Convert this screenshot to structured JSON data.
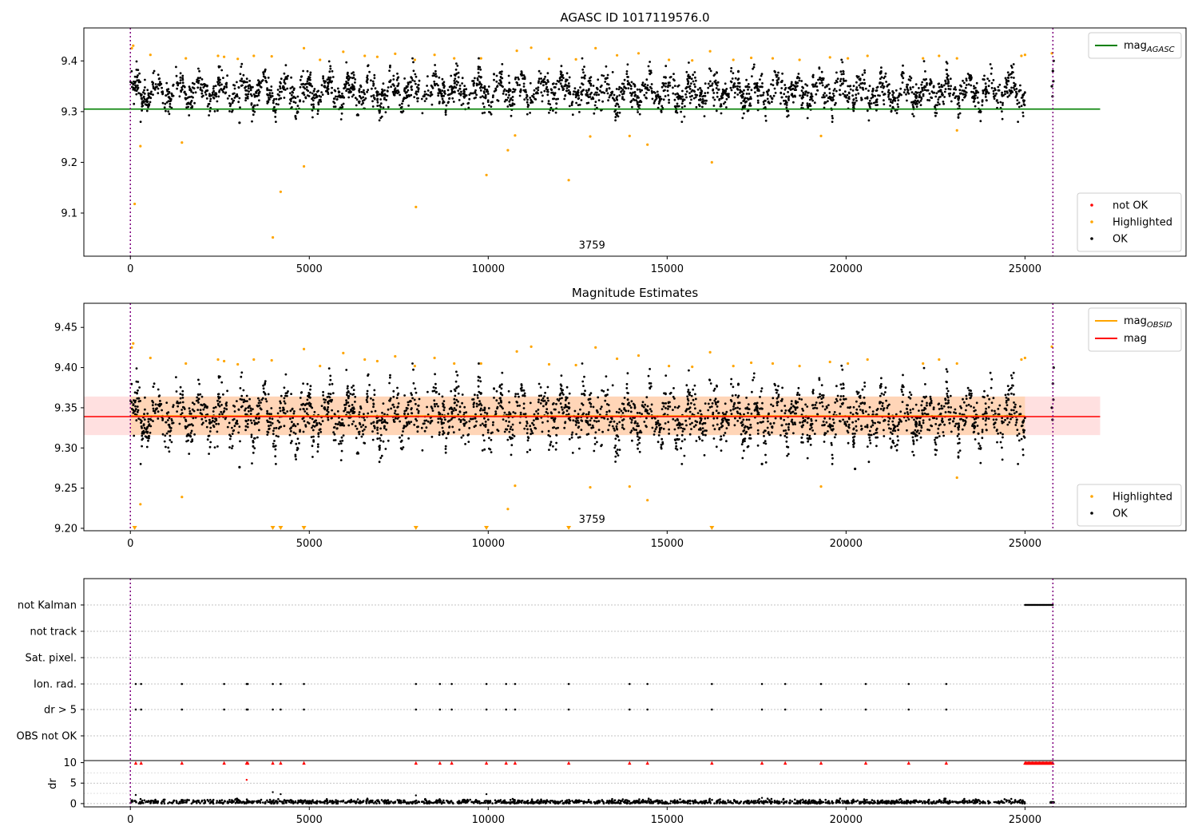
{
  "chart_data": [
    {
      "type": "scatter",
      "title": "AGASC ID 1017119576.0",
      "xlim": [
        -1300,
        29500
      ],
      "ylim": [
        9.015,
        9.465
      ],
      "x_ticks": [
        0,
        5000,
        10000,
        15000,
        20000,
        25000
      ],
      "x_tick_labels": [
        "0",
        "5000",
        "10000",
        "15000",
        "20000",
        "25000"
      ],
      "y_ticks": [
        9.1,
        9.2,
        9.3,
        9.4
      ],
      "y_tick_labels": [
        "9.1",
        "9.2",
        "9.3",
        "9.4"
      ],
      "vlines": [
        0,
        25780
      ],
      "vline_color": "#800080",
      "hline": {
        "name": "mag_AGASC",
        "label_main": "mag",
        "label_sub": "AGASC",
        "y": 9.305,
        "x_range": [
          -1300,
          27100
        ],
        "color": "#008000"
      },
      "annotation": {
        "text": "3759",
        "x": 12900,
        "y": 9.03
      },
      "legend_lines": {
        "position": "top-right",
        "entries": [
          {
            "label_main": "mag",
            "label_sub": "AGASC",
            "color": "#008000"
          }
        ]
      },
      "legend_points": {
        "position": "bottom-right",
        "entries": [
          {
            "label": "not OK",
            "color": "#ff0000"
          },
          {
            "label": "Highlighted",
            "color": "#ffa500"
          },
          {
            "label": "OK",
            "color": "#000000"
          }
        ]
      },
      "series": [
        {
          "name": "OK",
          "color": "#000000",
          "band": {
            "x_start": 0,
            "x_end": 25000,
            "center": 9.34,
            "amplitude": 0.03,
            "noise": 0.02,
            "n": 2800
          }
        },
        {
          "name": "Highlighted",
          "color": "#ffa500",
          "x": [
            120,
            280,
            1440,
            3980,
            4200,
            4850,
            7980,
            9950,
            10550,
            10750,
            12250,
            12850,
            13950,
            14450,
            16250,
            19300,
            23100,
            40,
            80,
            560,
            1550,
            2450,
            2620,
            3000,
            3450,
            3950,
            4850,
            5300,
            5950,
            6550,
            6900,
            7400,
            7950,
            8500,
            9050,
            9800,
            10800,
            11200,
            11700,
            12450,
            13000,
            13600,
            14200,
            15050,
            15700,
            16200,
            16850,
            17350,
            17950,
            18700,
            19550,
            20050,
            20600,
            22150,
            22600,
            23100,
            24900,
            25000,
            25750
          ],
          "y": [
            9.118,
            9.232,
            9.239,
            9.052,
            9.142,
            9.192,
            9.112,
            9.175,
            9.224,
            9.253,
            9.165,
            9.251,
            9.252,
            9.235,
            9.2,
            9.252,
            9.263,
            9.425,
            9.43,
            9.412,
            9.405,
            9.41,
            9.408,
            9.404,
            9.41,
            9.409,
            9.425,
            9.402,
            9.418,
            9.41,
            9.408,
            9.414,
            9.402,
            9.412,
            9.405,
            9.405,
            9.42,
            9.426,
            9.404,
            9.403,
            9.425,
            9.411,
            9.415,
            9.402,
            9.401,
            9.419,
            9.402,
            9.406,
            9.405,
            9.402,
            9.407,
            9.405,
            9.41,
            9.405,
            9.41,
            9.405,
            9.41,
            9.412,
            9.415
          ]
        },
        {
          "name": "OK-extra",
          "color": "#000000",
          "x": [
            25750,
            25780,
            25800,
            25770,
            25790,
            3050
          ],
          "y": [
            9.35,
            9.38,
            9.4,
            9.33,
            9.36,
            9.278
          ]
        }
      ]
    },
    {
      "type": "scatter",
      "title": "Magnitude Estimates",
      "xlim": [
        -1300,
        29500
      ],
      "ylim": [
        9.197,
        9.48
      ],
      "x_ticks": [
        0,
        5000,
        10000,
        15000,
        20000,
        25000
      ],
      "x_tick_labels": [
        "0",
        "5000",
        "10000",
        "15000",
        "20000",
        "25000"
      ],
      "y_ticks": [
        9.2,
        9.25,
        9.3,
        9.35,
        9.4,
        9.45
      ],
      "y_tick_labels": [
        "9.20",
        "9.25",
        "9.30",
        "9.35",
        "9.40",
        "9.45"
      ],
      "vlines": [
        0,
        25780
      ],
      "vline_color": "#800080",
      "hline": {
        "name": "mag",
        "y": 9.339,
        "x_range": [
          -1300,
          27100
        ],
        "color": "#ff0000"
      },
      "band_mag": {
        "y_low": 9.316,
        "y_high": 9.364,
        "x_range": [
          -1300,
          27100
        ],
        "color": "#ff0000",
        "opacity": 0.12
      },
      "band_obsid": {
        "y_low": 9.316,
        "y_high": 9.364,
        "x_range": [
          0,
          25000
        ],
        "color": "#ffa500",
        "opacity": 0.18
      },
      "obsid_line": {
        "y": 9.34,
        "x_range": [
          0,
          25000
        ],
        "color": "#ffa500"
      },
      "annotation": {
        "text": "3759",
        "x": 12900,
        "y": 9.207
      },
      "legend_lines": {
        "position": "top-right",
        "entries": [
          {
            "label_main": "mag",
            "label_sub": "OBSID",
            "color": "#ffa500"
          },
          {
            "label_main": "mag",
            "label_sub": "",
            "color": "#ff0000"
          }
        ]
      },
      "legend_points": {
        "position": "bottom-right",
        "entries": [
          {
            "label": "Highlighted",
            "color": "#ffa500"
          },
          {
            "label": "OK",
            "color": "#000000"
          }
        ]
      },
      "lower_limit_markers": {
        "color": "#ffa500",
        "x": [
          120,
          3980,
          4200,
          4850,
          7980,
          9950,
          12250,
          16250
        ],
        "y": 9.2
      },
      "series": [
        {
          "name": "OK",
          "color": "#000000",
          "band": {
            "x_start": 0,
            "x_end": 25000,
            "center": 9.34,
            "amplitude": 0.03,
            "noise": 0.02,
            "n": 2800
          }
        },
        {
          "name": "Highlighted",
          "color": "#ffa500",
          "x": [
            280,
            1440,
            10550,
            10750,
            12850,
            13950,
            14450,
            19300,
            23100,
            40,
            80,
            560,
            1550,
            2450,
            2620,
            3000,
            3450,
            3950,
            4850,
            5300,
            5950,
            6550,
            6900,
            7400,
            7950,
            8500,
            9050,
            9800,
            10800,
            11200,
            11700,
            12450,
            13000,
            13600,
            14200,
            15050,
            15700,
            16200,
            16850,
            17350,
            17950,
            18700,
            19550,
            20050,
            20600,
            22150,
            22600,
            23100,
            24900,
            25000,
            25750
          ],
          "y": [
            9.23,
            9.239,
            9.224,
            9.253,
            9.251,
            9.252,
            9.235,
            9.252,
            9.263,
            9.425,
            9.43,
            9.412,
            9.405,
            9.41,
            9.408,
            9.404,
            9.41,
            9.409,
            9.423,
            9.402,
            9.418,
            9.41,
            9.408,
            9.414,
            9.402,
            9.412,
            9.405,
            9.405,
            9.42,
            9.426,
            9.404,
            9.403,
            9.425,
            9.411,
            9.415,
            9.402,
            9.401,
            9.419,
            9.402,
            9.406,
            9.405,
            9.402,
            9.407,
            9.405,
            9.41,
            9.405,
            9.41,
            9.405,
            9.41,
            9.412,
            9.426
          ]
        },
        {
          "name": "OK-extra",
          "color": "#000000",
          "x": [
            25750,
            25780,
            25800,
            25770,
            25790,
            3050,
            17650,
            20250
          ],
          "y": [
            9.35,
            9.38,
            9.4,
            9.335,
            9.36,
            9.276,
            9.28,
            9.274
          ]
        }
      ]
    },
    {
      "type": "scatter",
      "title": "",
      "xlim": [
        -1300,
        29500
      ],
      "vlines": [
        0,
        25780
      ],
      "vline_color": "#800080",
      "flags": {
        "categories": [
          "not Kalman",
          "not track",
          "Sat. pixel.",
          "Ion. rad.",
          "dr > 5",
          "OBS not OK"
        ],
        "points": {
          "not Kalman": {
            "x_range": [
              25000,
              25780
            ],
            "n": 35
          },
          "Ion. rad.": [
            150,
            300,
            1440,
            2620,
            3250,
            3280,
            3980,
            4200,
            4850,
            7980,
            8650,
            8980,
            9950,
            10500,
            10750,
            12250,
            13950,
            14450,
            16250,
            17650,
            18300,
            19300,
            20550,
            21750,
            22800
          ],
          "dr > 5": [
            150,
            300,
            1440,
            2620,
            3250,
            3280,
            3980,
            4200,
            4850,
            7980,
            8650,
            8980,
            9950,
            10500,
            10750,
            12250,
            13950,
            14450,
            16250,
            17650,
            18300,
            19300,
            20550,
            21750,
            22800
          ]
        }
      },
      "dr": {
        "ylabel": "dr",
        "ylim": [
          -0.8,
          10.5
        ],
        "y_ticks": [
          0,
          5,
          10
        ],
        "y_tick_labels": [
          "0",
          "5",
          "10"
        ],
        "baseline": {
          "x_start": 0,
          "x_end": 25000,
          "mean": 0.4,
          "n": 1500
        },
        "capped_markers": {
          "color": "#ff0000",
          "y": 10,
          "x": [
            150,
            300,
            1440,
            2620,
            3250,
            3280,
            3980,
            4200,
            4850,
            7980,
            8650,
            8980,
            9950,
            10500,
            10750,
            12250,
            13950,
            14450,
            16250,
            17650,
            18300,
            19300,
            20550,
            21750,
            22800
          ],
          "dense_range": [
            25000,
            25780
          ],
          "dense_n": 28
        },
        "outliers": {
          "x": [
            3250,
            3980,
            4200,
            150,
            7980,
            9950,
            17650
          ],
          "y": [
            5.8,
            2.8,
            2.3,
            2.1,
            2.0,
            2.3,
            1.4
          ]
        }
      },
      "x_ticks": [
        0,
        5000,
        10000,
        15000,
        20000,
        25000
      ],
      "x_tick_labels": [
        "0",
        "5000",
        "10000",
        "15000",
        "20000",
        "25000"
      ]
    }
  ]
}
